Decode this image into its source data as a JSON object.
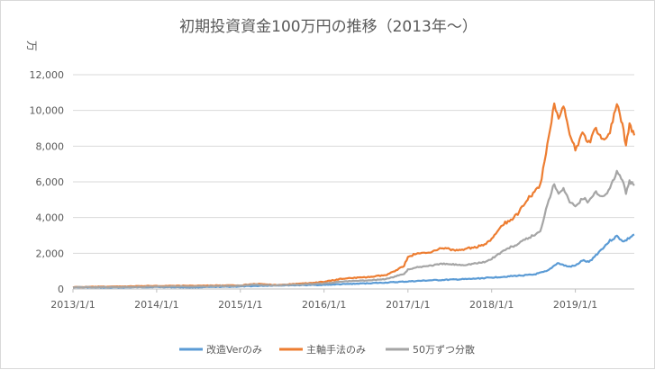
{
  "chart_data": {
    "type": "line",
    "title": "初期投資資金100万円の推移（2013年～）",
    "ylabel": "万",
    "xlabel": "",
    "ylim": [
      0,
      12000
    ],
    "y_ticks": [
      "0",
      "2,000",
      "4,000",
      "6,000",
      "8,000",
      "10,000",
      "12,000"
    ],
    "y_tick_values": [
      0,
      2000,
      4000,
      6000,
      8000,
      10000,
      12000
    ],
    "x_tick_labels": [
      "2013/1/1",
      "2014/1/1",
      "2015/1/1",
      "2016/1/1",
      "2017/1/1",
      "2018/1/1",
      "2019/1/1"
    ],
    "x_tick_dates": [
      "2013-01-01",
      "2014-01-01",
      "2015-01-01",
      "2016-01-01",
      "2017-01-01",
      "2018-01-01",
      "2019-01-01"
    ],
    "xlim": [
      "2013-01-01",
      "2019-09-15"
    ],
    "grid": "horizontal",
    "legend_position": "bottom",
    "series": [
      {
        "name": "改造Verのみ",
        "color": "#5b9bd5",
        "points": [
          [
            "2013-01-01",
            100
          ],
          [
            "2013-06-01",
            80
          ],
          [
            "2014-01-01",
            110
          ],
          [
            "2014-06-01",
            90
          ],
          [
            "2015-01-01",
            140
          ],
          [
            "2015-06-01",
            200
          ],
          [
            "2016-01-01",
            230
          ],
          [
            "2016-06-01",
            300
          ],
          [
            "2016-10-01",
            360
          ],
          [
            "2017-01-01",
            420
          ],
          [
            "2017-04-01",
            480
          ],
          [
            "2017-07-01",
            520
          ],
          [
            "2017-10-01",
            560
          ],
          [
            "2018-01-01",
            640
          ],
          [
            "2018-04-01",
            720
          ],
          [
            "2018-07-01",
            800
          ],
          [
            "2018-09-01",
            1000
          ],
          [
            "2018-10-15",
            1450
          ],
          [
            "2018-12-01",
            1250
          ],
          [
            "2019-01-01",
            1300
          ],
          [
            "2019-02-01",
            1600
          ],
          [
            "2019-03-01",
            1500
          ],
          [
            "2019-04-01",
            1900
          ],
          [
            "2019-05-01",
            2300
          ],
          [
            "2019-06-01",
            2700
          ],
          [
            "2019-07-01",
            2950
          ],
          [
            "2019-08-01",
            2650
          ],
          [
            "2019-09-15",
            3050
          ]
        ]
      },
      {
        "name": "主軸手法のみ",
        "color": "#ed7d31",
        "points": [
          [
            "2013-01-01",
            100
          ],
          [
            "2013-06-01",
            130
          ],
          [
            "2014-01-01",
            170
          ],
          [
            "2014-06-01",
            180
          ],
          [
            "2015-01-01",
            200
          ],
          [
            "2015-03-01",
            290
          ],
          [
            "2015-06-01",
            220
          ],
          [
            "2015-10-01",
            300
          ],
          [
            "2016-01-01",
            400
          ],
          [
            "2016-04-01",
            600
          ],
          [
            "2016-07-01",
            650
          ],
          [
            "2016-10-01",
            780
          ],
          [
            "2016-12-15",
            1300
          ],
          [
            "2017-01-01",
            1800
          ],
          [
            "2017-02-01",
            1950
          ],
          [
            "2017-04-01",
            2050
          ],
          [
            "2017-06-01",
            2300
          ],
          [
            "2017-08-01",
            2150
          ],
          [
            "2017-10-01",
            2300
          ],
          [
            "2017-12-01",
            2450
          ],
          [
            "2018-01-01",
            2800
          ],
          [
            "2018-02-01",
            3300
          ],
          [
            "2018-03-01",
            3700
          ],
          [
            "2018-04-01",
            3900
          ],
          [
            "2018-05-01",
            4300
          ],
          [
            "2018-06-01",
            5000
          ],
          [
            "2018-07-01",
            5300
          ],
          [
            "2018-08-01",
            5800
          ],
          [
            "2018-09-01",
            8000
          ],
          [
            "2018-10-01",
            10400
          ],
          [
            "2018-10-20",
            9600
          ],
          [
            "2018-11-10",
            10300
          ],
          [
            "2018-12-01",
            9000
          ],
          [
            "2019-01-01",
            7800
          ],
          [
            "2019-02-01",
            8700
          ],
          [
            "2019-03-01",
            8200
          ],
          [
            "2019-04-01",
            9000
          ],
          [
            "2019-05-01",
            8300
          ],
          [
            "2019-06-01",
            8800
          ],
          [
            "2019-07-01",
            10300
          ],
          [
            "2019-07-20",
            9500
          ],
          [
            "2019-08-10",
            8100
          ],
          [
            "2019-08-25",
            9200
          ],
          [
            "2019-09-15",
            8600
          ]
        ]
      },
      {
        "name": "50万ずつ分散",
        "color": "#a5a5a5",
        "points": [
          [
            "2013-01-01",
            100
          ],
          [
            "2013-06-01",
            100
          ],
          [
            "2014-01-01",
            130
          ],
          [
            "2014-06-01",
            140
          ],
          [
            "2015-01-01",
            180
          ],
          [
            "2015-03-01",
            250
          ],
          [
            "2015-06-01",
            200
          ],
          [
            "2015-10-01",
            260
          ],
          [
            "2016-01-01",
            310
          ],
          [
            "2016-04-01",
            430
          ],
          [
            "2016-07-01",
            480
          ],
          [
            "2016-10-01",
            560
          ],
          [
            "2016-12-15",
            850
          ],
          [
            "2017-01-01",
            1100
          ],
          [
            "2017-03-01",
            1250
          ],
          [
            "2017-06-01",
            1400
          ],
          [
            "2017-09-01",
            1350
          ],
          [
            "2017-12-01",
            1500
          ],
          [
            "2018-01-01",
            1700
          ],
          [
            "2018-03-01",
            2200
          ],
          [
            "2018-05-01",
            2550
          ],
          [
            "2018-06-01",
            2800
          ],
          [
            "2018-08-01",
            3200
          ],
          [
            "2018-09-01",
            4800
          ],
          [
            "2018-10-01",
            5900
          ],
          [
            "2018-10-20",
            5400
          ],
          [
            "2018-11-10",
            5700
          ],
          [
            "2018-12-01",
            5000
          ],
          [
            "2019-01-01",
            4600
          ],
          [
            "2019-02-01",
            5100
          ],
          [
            "2019-03-01",
            4900
          ],
          [
            "2019-04-01",
            5400
          ],
          [
            "2019-05-01",
            5200
          ],
          [
            "2019-06-01",
            5600
          ],
          [
            "2019-07-01",
            6600
          ],
          [
            "2019-07-20",
            6200
          ],
          [
            "2019-08-10",
            5400
          ],
          [
            "2019-08-25",
            6000
          ],
          [
            "2019-09-15",
            5800
          ]
        ]
      }
    ]
  }
}
